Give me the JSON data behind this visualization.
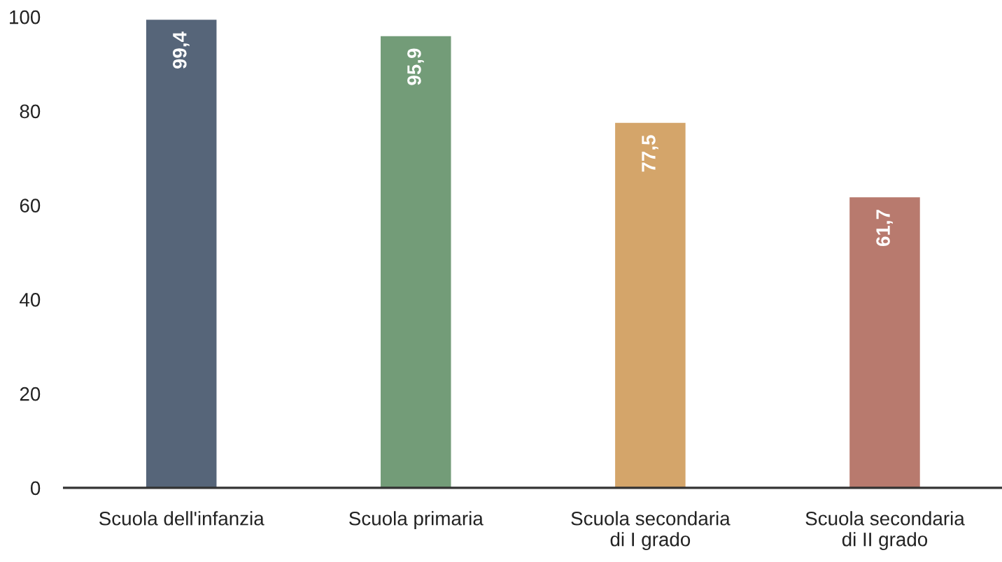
{
  "chart_data": {
    "type": "bar",
    "categories": [
      "Scuola dell'infanzia",
      "Scuola primaria",
      "Scuola secondaria\ndi I grado",
      "Scuola secondaria\ndi II grado"
    ],
    "values": [
      99.4,
      95.9,
      77.5,
      61.7
    ],
    "value_labels": [
      "99,4",
      "95,9",
      "77,5",
      "61,7"
    ],
    "colors": [
      "#566579",
      "#739c78",
      "#d4a56a",
      "#b87a6e"
    ],
    "ylim": [
      0,
      100
    ],
    "yticks": [
      0,
      20,
      40,
      60,
      80,
      100
    ],
    "grid": false,
    "legend": false
  }
}
